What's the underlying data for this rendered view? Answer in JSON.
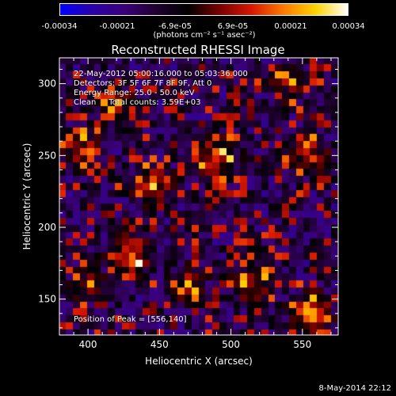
{
  "colorbar": {
    "colors": [
      "#0000ff",
      "#2a00a8",
      "#3a007a",
      "#200030",
      "#000000",
      "#7a0000",
      "#d81800",
      "#ff7a00",
      "#ffd400",
      "#ffffff"
    ],
    "tick_labels": [
      "-0.00034",
      "-0.00021",
      "-6.9e-05",
      "6.9e-05",
      "0.00021",
      "0.00034"
    ],
    "units": "(photons cm⁻² s⁻¹ asec⁻²)",
    "min": -0.00034,
    "max": 0.00034
  },
  "chart_data": {
    "type": "heatmap",
    "title": "Reconstructed RHESSI Image",
    "xlabel": "Heliocentric X (arcsec)",
    "ylabel": "Heliocentric Y (arcsec)",
    "xlim": [
      380,
      575
    ],
    "ylim": [
      125,
      318
    ],
    "xticks": [
      400,
      450,
      500,
      550
    ],
    "yticks": [
      150,
      200,
      250,
      300
    ],
    "grid": false,
    "bright_sources": [
      {
        "x": 556,
        "y": 140,
        "value": 0.00034
      },
      {
        "x": 430,
        "y": 180,
        "value": 0.0003
      },
      {
        "x": 490,
        "y": 248,
        "value": 0.00028
      },
      {
        "x": 445,
        "y": 230,
        "value": 0.00024
      },
      {
        "x": 395,
        "y": 255,
        "value": 0.00022
      },
      {
        "x": 555,
        "y": 250,
        "value": 0.00021
      },
      {
        "x": 515,
        "y": 160,
        "value": 0.00022
      },
      {
        "x": 470,
        "y": 160,
        "value": 0.00016
      },
      {
        "x": 420,
        "y": 285,
        "value": 0.00015
      },
      {
        "x": 540,
        "y": 300,
        "value": 0.00014
      },
      {
        "x": 400,
        "y": 160,
        "value": 0.00012
      }
    ]
  },
  "annotations": {
    "time_range": "22-May-2012 05:00:16.000 to 05:03:36.000",
    "detectors": "Detectors: 3F 5F 6F 7F 8F 9F, Att 0",
    "energy": "Energy Range: 25.0 - 50.0 keV",
    "method": "Clean     Total counts: 3.59E+03",
    "peak": "Position of Peak = [556,140]"
  },
  "footer": "8-May-2014 22:12"
}
